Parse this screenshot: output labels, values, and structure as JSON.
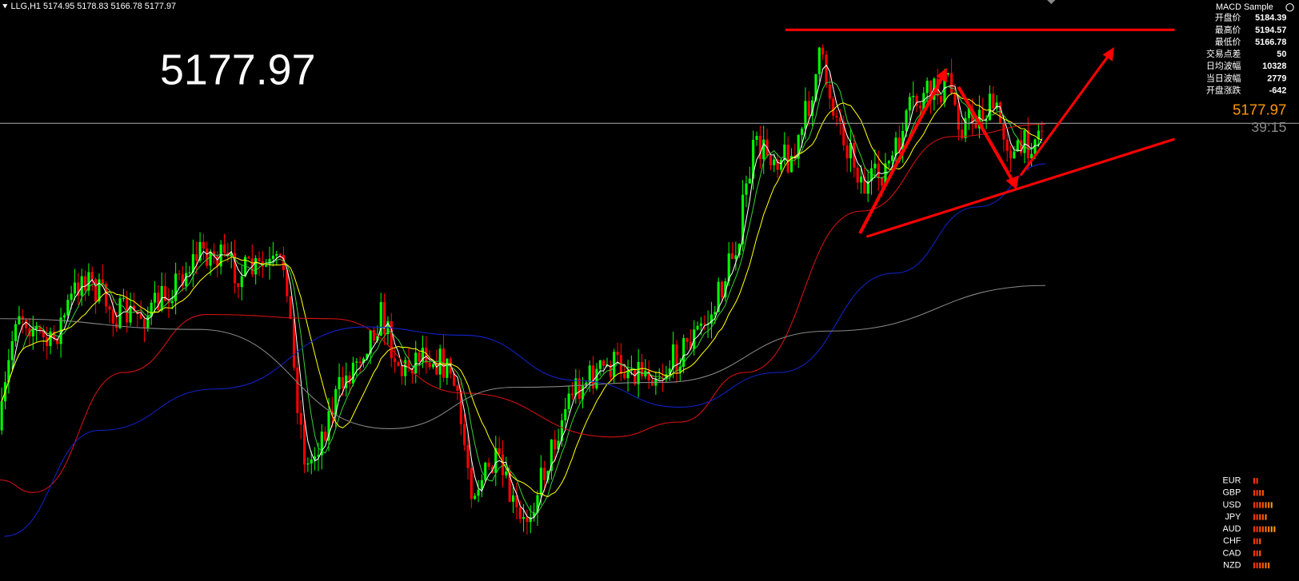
{
  "header": "LLG,H1  5174.95 5178.83 5166.78 5177.97",
  "big_price": "5177.97",
  "indicator": "MACD Sample",
  "info_panel": [
    {
      "label": "开盘价",
      "value": "5184.39"
    },
    {
      "label": "最高价",
      "value": "5194.57"
    },
    {
      "label": "最低价",
      "value": "5166.78"
    },
    {
      "label": "交易点差",
      "value": "50"
    },
    {
      "label": "日均波幅",
      "value": "10328"
    },
    {
      "label": "当日波幅",
      "value": "2779"
    },
    {
      "label": "开盘涨跌",
      "value": "-642"
    }
  ],
  "price_label": "5177.97",
  "timer": "39:15",
  "currency_strength": [
    {
      "name": "EUR",
      "strength": 2
    },
    {
      "name": "GBP",
      "strength": 4
    },
    {
      "name": "USD",
      "strength": 7
    },
    {
      "name": "JPY",
      "strength": 5
    },
    {
      "name": "AUD",
      "strength": 8
    },
    {
      "name": "CHF",
      "strength": 3
    },
    {
      "name": "CAD",
      "strength": 3
    },
    {
      "name": "NZD",
      "strength": 6
    }
  ]
}
